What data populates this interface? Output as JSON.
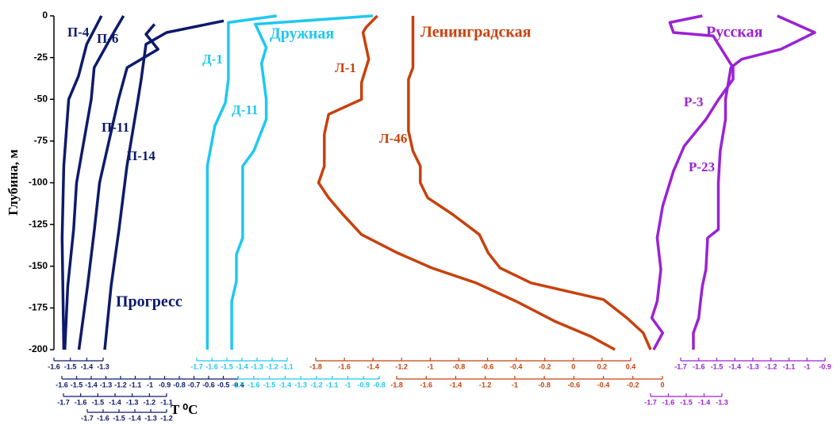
{
  "chart_data": {
    "type": "line",
    "ylabel": "Глубина, м",
    "xlabel": "T ⁰C",
    "ylim": [
      -200,
      0
    ],
    "yticks": [
      0,
      -25,
      -50,
      -75,
      -100,
      -125,
      -150,
      -175,
      -200
    ],
    "groups": [
      {
        "name": "Прогресс",
        "color": "#0d1a6b"
      },
      {
        "name": "Дружная",
        "color": "#1ec8f0"
      },
      {
        "name": "Ленинградская",
        "color": "#c8410c"
      },
      {
        "name": "Русская",
        "color": "#9b22d4"
      }
    ],
    "axes": [
      {
        "color": "#0d1a6b",
        "xlim": [
          -1.6,
          -1.3
        ],
        "xticks": [
          -1.6,
          -1.5,
          -1.4,
          -1.3
        ]
      },
      {
        "color": "#0d1a6b",
        "xlim": [
          -1.6,
          -0.4
        ],
        "xticks": [
          -1.6,
          -1.5,
          -1.4,
          -1.3,
          -1.2,
          -1.1,
          -1,
          -0.9,
          -0.8,
          -0.7,
          -0.6,
          -0.5,
          -0.4
        ]
      },
      {
        "color": "#0d1a6b",
        "xlim": [
          -1.7,
          -1.1
        ],
        "xticks": [
          -1.7,
          -1.6,
          -1.5,
          -1.4,
          -1.3,
          -1.2,
          -1.1
        ]
      },
      {
        "color": "#0d1a6b",
        "xlim": [
          -1.7,
          -1.2
        ],
        "xticks": [
          -1.7,
          -1.6,
          -1.5,
          -1.4,
          -1.3,
          -1.2
        ]
      },
      {
        "color": "#1ec8f0",
        "xlim": [
          -1.7,
          -1.1
        ],
        "xticks": [
          -1.7,
          -1.6,
          -1.5,
          -1.4,
          -1.3,
          -1.2,
          -1.1
        ]
      },
      {
        "color": "#1ec8f0",
        "xlim": [
          -1.7,
          -0.8
        ],
        "xticks": [
          -1.7,
          -1.6,
          -1.5,
          -1.4,
          -1.3,
          -1.2,
          -1.1,
          -1,
          -0.9,
          -0.8
        ]
      },
      {
        "color": "#c8410c",
        "xlim": [
          -1.8,
          0.4
        ],
        "xticks": [
          -1.8,
          -1.6,
          -1.4,
          -1.2,
          -1,
          -0.8,
          -0.6,
          -0.4,
          -0.2,
          0,
          0.2,
          0.4
        ]
      },
      {
        "color": "#c8410c",
        "xlim": [
          -1.8,
          0
        ],
        "xticks": [
          -1.8,
          -1.6,
          -1.4,
          -1.2,
          -1,
          -0.8,
          -0.6,
          -0.4,
          -0.2,
          0
        ]
      },
      {
        "color": "#9b22d4",
        "xlim": [
          -1.7,
          -0.9
        ],
        "xticks": [
          -1.7,
          -1.6,
          -1.5,
          -1.4,
          -1.3,
          -1.2,
          -1.1,
          -1,
          -0.9
        ]
      },
      {
        "color": "#9b22d4",
        "xlim": [
          -1.7,
          -1.3
        ],
        "xticks": [
          -1.7,
          -1.6,
          -1.5,
          -1.4,
          -1.3
        ]
      }
    ],
    "series": [
      {
        "name": "П-4",
        "axis": 0,
        "color": "#0d1a6b",
        "depths": [
          0,
          -17,
          -36,
          -50,
          -90,
          -133,
          -200
        ],
        "values": [
          -1.31,
          -1.4,
          -1.45,
          -1.51,
          -1.54,
          -1.55,
          -1.54
        ]
      },
      {
        "name": "П-6",
        "axis": 1,
        "color": "#0d1a6b",
        "depths": [
          0,
          -12,
          -31,
          -50,
          -100,
          -128,
          -162,
          -200
        ],
        "values": [
          -1.18,
          -1.26,
          -1.38,
          -1.4,
          -1.5,
          -1.52,
          -1.56,
          -1.58
        ]
      },
      {
        "name": "П-11",
        "axis": 2,
        "color": "#0d1a6b",
        "depths": [
          -5,
          -11,
          -20,
          -31,
          -50,
          -100,
          -128,
          -162,
          -200
        ],
        "values": [
          -1.17,
          -1.22,
          -1.15,
          -1.33,
          -1.38,
          -1.49,
          -1.52,
          -1.56,
          -1.61
        ]
      },
      {
        "name": "П-14",
        "axis": 3,
        "color": "#0d1a6b",
        "depths": [
          -3,
          -10,
          -17,
          -38,
          -50,
          -90,
          -128,
          -162,
          -200
        ],
        "values": [
          -0.84,
          -1.2,
          -1.33,
          -1.36,
          -1.38,
          -1.45,
          -1.5,
          -1.55,
          -1.59
        ]
      },
      {
        "name": "Д-1",
        "axis": 4,
        "color": "#1ec8f0",
        "depths": [
          0,
          -4,
          -38,
          -52,
          -66,
          -90,
          -200
        ],
        "values": [
          -1.17,
          -1.49,
          -1.49,
          -1.51,
          -1.58,
          -1.63,
          -1.63
        ]
      },
      {
        "name": "Д-11",
        "axis": 5,
        "color": "#1ec8f0",
        "depths": [
          0,
          -5,
          -19,
          -28.5,
          -50,
          -62,
          -81,
          -90,
          -133,
          -143,
          -159,
          -171,
          -200
        ],
        "values": [
          -0.84,
          -1.59,
          -1.52,
          -1.55,
          -1.52,
          -1.52,
          -1.6,
          -1.67,
          -1.67,
          -1.71,
          -1.71,
          -1.74,
          -1.74
        ]
      },
      {
        "name": "Л-1",
        "axis": 6,
        "color": "#c8410c",
        "depths": [
          0,
          -7,
          -10,
          -26,
          -40,
          -50,
          -59,
          -71,
          -90,
          -100,
          -109,
          -119,
          -131,
          -142,
          -151,
          -160,
          -171,
          -183,
          -192,
          -200
        ],
        "values": [
          -1.37,
          -1.45,
          -1.47,
          -1.43,
          -1.48,
          -1.48,
          -1.71,
          -1.74,
          -1.74,
          -1.78,
          -1.71,
          -1.61,
          -1.48,
          -1.23,
          -0.99,
          -0.68,
          -0.4,
          -0.13,
          0.12,
          0.29
        ]
      },
      {
        "name": "Л-46",
        "axis": 7,
        "color": "#c8410c",
        "depths": [
          0,
          -31,
          -38,
          -69,
          -81,
          -90,
          -100,
          -109,
          -119,
          -131,
          -142,
          -151,
          -160,
          -170,
          -181,
          -190,
          -200
        ],
        "values": [
          -1.69,
          -1.69,
          -1.72,
          -1.72,
          -1.69,
          -1.64,
          -1.64,
          -1.59,
          -1.42,
          -1.24,
          -1.18,
          -1.1,
          -0.89,
          -0.4,
          -0.24,
          -0.13,
          -0.08
        ]
      },
      {
        "name": "Р-3",
        "axis": 8,
        "color": "#9b22d4",
        "depths": [
          0,
          -4,
          -10,
          -12,
          -31,
          -38,
          -50,
          -62,
          -78,
          -93,
          -114,
          -133,
          -152,
          -171,
          -181,
          -190,
          -200
        ],
        "values": [
          -1.58,
          -1.76,
          -1.74,
          -1.52,
          -1.41,
          -1.41,
          -1.49,
          -1.56,
          -1.68,
          -1.74,
          -1.8,
          -1.83,
          -1.81,
          -1.83,
          -1.86,
          -1.8,
          -1.85
        ]
      },
      {
        "name": "Р-23",
        "axis": 9,
        "color": "#9b22d4",
        "depths": [
          0,
          -10,
          -20,
          -26,
          -31,
          -50,
          -62,
          -81,
          -100,
          -128,
          -133,
          -152,
          -162,
          -171,
          -181,
          -190,
          -200
        ],
        "values": [
          -0.99,
          -0.78,
          -0.97,
          -1.19,
          -1.25,
          -1.28,
          -1.28,
          -1.31,
          -1.32,
          -1.32,
          -1.38,
          -1.39,
          -1.41,
          -1.42,
          -1.43,
          -1.46,
          -1.46
        ]
      }
    ]
  }
}
